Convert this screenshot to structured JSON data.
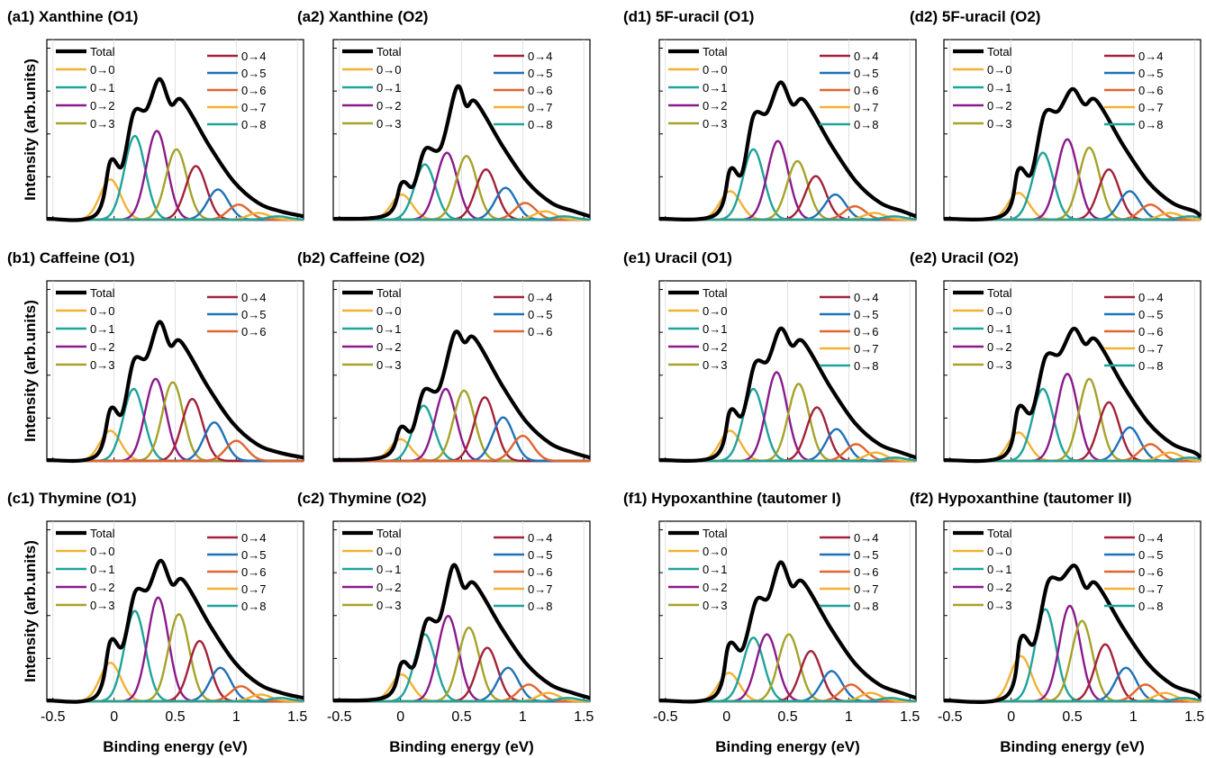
{
  "colors": {
    "Total": "#000000",
    "0→0": "#f2b134",
    "0→1": "#1fa39a",
    "0→2": "#8b1a8b",
    "0→3": "#a4a32a",
    "0→4": "#a3223a",
    "0→5": "#1f72b8",
    "0→6": "#e0652e",
    "0→7": "#f2b134",
    "0→8": "#1fa39a"
  },
  "axes": {
    "ylabel": "Intensity (arb.units)",
    "xlabel": "Binding energy (eV)",
    "xticks": [
      -0.5,
      0,
      0.5,
      1,
      1.5
    ],
    "xtick_labels": [
      "-0.5",
      "0",
      "0.5",
      "1",
      "1.5"
    ],
    "xlim": [
      -0.55,
      1.55
    ]
  },
  "chart_data": [
    {
      "type": "line",
      "title": "(a1) Xanthine (O1)",
      "xlabel": "",
      "ylabel": "Intensity (arb.units)",
      "legend_left": [
        "Total",
        "0→0",
        "0→1",
        "0→2",
        "0→3"
      ],
      "legend_right": [
        "0→4",
        "0→5",
        "0→6",
        "0→7",
        "0→8"
      ],
      "total_peaks": [
        {
          "x": -0.03,
          "y": 0.35
        },
        {
          "x": 0.16,
          "y": 0.64
        },
        {
          "x": 0.37,
          "y": 0.84
        },
        {
          "x": 0.56,
          "y": 0.71
        }
      ],
      "components": [
        {
          "name": "0→0",
          "center": -0.03,
          "height": 0.24
        },
        {
          "name": "0→1",
          "center": 0.17,
          "height": 0.5
        },
        {
          "name": "0→2",
          "center": 0.35,
          "height": 0.53
        },
        {
          "name": "0→3",
          "center": 0.51,
          "height": 0.42
        },
        {
          "name": "0→4",
          "center": 0.67,
          "height": 0.32
        },
        {
          "name": "0→5",
          "center": 0.85,
          "height": 0.18
        },
        {
          "name": "0→6",
          "center": 1.02,
          "height": 0.09
        },
        {
          "name": "0→7",
          "center": 1.18,
          "height": 0.04
        },
        {
          "name": "0→8",
          "center": 1.34,
          "height": 0.02
        }
      ]
    },
    {
      "type": "line",
      "title": "(a2) Xanthine (O2)",
      "xlabel": "",
      "ylabel": "",
      "legend_left": [
        "Total",
        "0→0",
        "0→1",
        "0→2",
        "0→3"
      ],
      "legend_right": [
        "0→4",
        "0→5",
        "0→6",
        "0→7",
        "0→8"
      ],
      "total_peaks": [
        {
          "x": 0.01,
          "y": 0.22
        },
        {
          "x": 0.2,
          "y": 0.42
        },
        {
          "x": 0.46,
          "y": 0.79
        },
        {
          "x": 0.62,
          "y": 0.7
        }
      ],
      "components": [
        {
          "name": "0→0",
          "center": 0.01,
          "height": 0.15
        },
        {
          "name": "0→1",
          "center": 0.2,
          "height": 0.33
        },
        {
          "name": "0→2",
          "center": 0.38,
          "height": 0.4
        },
        {
          "name": "0→3",
          "center": 0.54,
          "height": 0.38
        },
        {
          "name": "0→4",
          "center": 0.7,
          "height": 0.3
        },
        {
          "name": "0→5",
          "center": 0.86,
          "height": 0.19
        },
        {
          "name": "0→6",
          "center": 1.02,
          "height": 0.1
        },
        {
          "name": "0→7",
          "center": 1.18,
          "height": 0.05
        },
        {
          "name": "0→8",
          "center": 1.34,
          "height": 0.02
        }
      ]
    },
    {
      "type": "line",
      "title": "(d1) 5F-uracil (O1)",
      "xlabel": "",
      "ylabel": "",
      "legend_left": [
        "Total",
        "0→0",
        "0→1",
        "0→2",
        "0→3"
      ],
      "legend_right": [
        "0→4",
        "0→5",
        "0→6",
        "0→7",
        "0→8"
      ],
      "total_peaks": [
        {
          "x": 0.03,
          "y": 0.3
        },
        {
          "x": 0.22,
          "y": 0.62
        },
        {
          "x": 0.44,
          "y": 0.82
        },
        {
          "x": 0.64,
          "y": 0.71
        }
      ],
      "components": [
        {
          "name": "0→0",
          "center": 0.03,
          "height": 0.17
        },
        {
          "name": "0→1",
          "center": 0.22,
          "height": 0.42
        },
        {
          "name": "0→2",
          "center": 0.42,
          "height": 0.47
        },
        {
          "name": "0→3",
          "center": 0.58,
          "height": 0.35
        },
        {
          "name": "0→4",
          "center": 0.73,
          "height": 0.26
        },
        {
          "name": "0→5",
          "center": 0.89,
          "height": 0.15
        },
        {
          "name": "0→6",
          "center": 1.05,
          "height": 0.08
        },
        {
          "name": "0→7",
          "center": 1.21,
          "height": 0.04
        },
        {
          "name": "0→8",
          "center": 1.37,
          "height": 0.02
        }
      ]
    },
    {
      "type": "line",
      "title": "(d2) 5F-uracil (O2)",
      "xlabel": "",
      "ylabel": "",
      "legend_left": [
        "Total",
        "0→0",
        "0→1",
        "0→2",
        "0→3"
      ],
      "legend_right": [
        "0→4",
        "0→5",
        "0→6",
        "0→7",
        "0→8"
      ],
      "total_peaks": [
        {
          "x": 0.06,
          "y": 0.3
        },
        {
          "x": 0.27,
          "y": 0.63
        },
        {
          "x": 0.5,
          "y": 0.78
        },
        {
          "x": 0.7,
          "y": 0.71
        }
      ],
      "components": [
        {
          "name": "0→0",
          "center": 0.06,
          "height": 0.16
        },
        {
          "name": "0→1",
          "center": 0.26,
          "height": 0.4
        },
        {
          "name": "0→2",
          "center": 0.46,
          "height": 0.48
        },
        {
          "name": "0→3",
          "center": 0.64,
          "height": 0.43
        },
        {
          "name": "0→4",
          "center": 0.8,
          "height": 0.3
        },
        {
          "name": "0→5",
          "center": 0.97,
          "height": 0.17
        },
        {
          "name": "0→6",
          "center": 1.14,
          "height": 0.09
        },
        {
          "name": "0→7",
          "center": 1.3,
          "height": 0.04
        },
        {
          "name": "0→8",
          "center": 1.46,
          "height": 0.02
        }
      ]
    },
    {
      "type": "line",
      "title": "(b1) Caffeine (O1)",
      "xlabel": "",
      "ylabel": "Intensity (arb.units)",
      "legend_left": [
        "Total",
        "0→0",
        "0→1",
        "0→2",
        "0→3"
      ],
      "legend_right": [
        "0→4",
        "0→5",
        "0→6"
      ],
      "total_peaks": [
        {
          "x": -0.03,
          "y": 0.31
        },
        {
          "x": 0.16,
          "y": 0.6
        },
        {
          "x": 0.37,
          "y": 0.83
        },
        {
          "x": 0.55,
          "y": 0.71
        }
      ],
      "components": [
        {
          "name": "0→0",
          "center": -0.03,
          "height": 0.18
        },
        {
          "name": "0→1",
          "center": 0.16,
          "height": 0.43
        },
        {
          "name": "0→2",
          "center": 0.34,
          "height": 0.49
        },
        {
          "name": "0→3",
          "center": 0.48,
          "height": 0.47
        },
        {
          "name": "0→4",
          "center": 0.64,
          "height": 0.37
        },
        {
          "name": "0→5",
          "center": 0.82,
          "height": 0.23
        },
        {
          "name": "0→6",
          "center": 1.0,
          "height": 0.12
        }
      ]
    },
    {
      "type": "line",
      "title": "(b2) Caffeine (O2)",
      "xlabel": "",
      "ylabel": "",
      "legend_left": [
        "Total",
        "0→0",
        "0→1",
        "0→2",
        "0→3"
      ],
      "legend_right": [
        "0→4",
        "0→5",
        "0→6"
      ],
      "total_peaks": [
        {
          "x": 0.0,
          "y": 0.2
        },
        {
          "x": 0.19,
          "y": 0.42
        },
        {
          "x": 0.44,
          "y": 0.76
        },
        {
          "x": 0.61,
          "y": 0.73
        }
      ],
      "components": [
        {
          "name": "0→0",
          "center": 0.0,
          "height": 0.13
        },
        {
          "name": "0→1",
          "center": 0.19,
          "height": 0.33
        },
        {
          "name": "0→2",
          "center": 0.37,
          "height": 0.43
        },
        {
          "name": "0→3",
          "center": 0.52,
          "height": 0.42
        },
        {
          "name": "0→4",
          "center": 0.69,
          "height": 0.38
        },
        {
          "name": "0→5",
          "center": 0.84,
          "height": 0.26
        },
        {
          "name": "0→6",
          "center": 1.0,
          "height": 0.15
        }
      ]
    },
    {
      "type": "line",
      "title": "(e1) Uracil (O1)",
      "xlabel": "",
      "ylabel": "",
      "legend_left": [
        "Total",
        "0→0",
        "0→1",
        "0→2",
        "0→3"
      ],
      "legend_right": [
        "0→4",
        "0→5",
        "0→6",
        "0→7",
        "0→8"
      ],
      "total_peaks": [
        {
          "x": 0.03,
          "y": 0.3
        },
        {
          "x": 0.23,
          "y": 0.58
        },
        {
          "x": 0.44,
          "y": 0.79
        },
        {
          "x": 0.63,
          "y": 0.71
        }
      ],
      "components": [
        {
          "name": "0→0",
          "center": 0.03,
          "height": 0.18
        },
        {
          "name": "0→1",
          "center": 0.22,
          "height": 0.43
        },
        {
          "name": "0→2",
          "center": 0.41,
          "height": 0.53
        },
        {
          "name": "0→3",
          "center": 0.59,
          "height": 0.46
        },
        {
          "name": "0→4",
          "center": 0.74,
          "height": 0.32
        },
        {
          "name": "0→5",
          "center": 0.9,
          "height": 0.19
        },
        {
          "name": "0→6",
          "center": 1.06,
          "height": 0.1
        },
        {
          "name": "0→7",
          "center": 1.22,
          "height": 0.05
        },
        {
          "name": "0→8",
          "center": 1.38,
          "height": 0.02
        }
      ]
    },
    {
      "type": "line",
      "title": "(e2) Uracil (O2)",
      "xlabel": "",
      "ylabel": "",
      "legend_left": [
        "Total",
        "0→0",
        "0→1",
        "0→2",
        "0→3"
      ],
      "legend_right": [
        "0→4",
        "0→5",
        "0→6",
        "0→7",
        "0→8"
      ],
      "total_peaks": [
        {
          "x": 0.06,
          "y": 0.32
        },
        {
          "x": 0.28,
          "y": 0.62
        },
        {
          "x": 0.51,
          "y": 0.79
        },
        {
          "x": 0.7,
          "y": 0.72
        }
      ],
      "components": [
        {
          "name": "0→0",
          "center": 0.06,
          "height": 0.17
        },
        {
          "name": "0→1",
          "center": 0.26,
          "height": 0.43
        },
        {
          "name": "0→2",
          "center": 0.46,
          "height": 0.52
        },
        {
          "name": "0→3",
          "center": 0.64,
          "height": 0.49
        },
        {
          "name": "0→4",
          "center": 0.8,
          "height": 0.35
        },
        {
          "name": "0→5",
          "center": 0.97,
          "height": 0.2
        },
        {
          "name": "0→6",
          "center": 1.14,
          "height": 0.1
        },
        {
          "name": "0→7",
          "center": 1.3,
          "height": 0.05
        },
        {
          "name": "0→8",
          "center": 1.46,
          "height": 0.02
        }
      ]
    },
    {
      "type": "line",
      "title": "(c1) Thymine (O1)",
      "xlabel": "Binding energy (eV)",
      "ylabel": "Intensity (arb.units)",
      "legend_left": [
        "Total",
        "0→0",
        "0→1",
        "0→2",
        "0→3"
      ],
      "legend_right": [
        "0→4",
        "0→5",
        "0→6",
        "0→7",
        "0→8"
      ],
      "total_peaks": [
        {
          "x": -0.03,
          "y": 0.36
        },
        {
          "x": 0.17,
          "y": 0.65
        },
        {
          "x": 0.38,
          "y": 0.84
        },
        {
          "x": 0.57,
          "y": 0.72
        }
      ],
      "components": [
        {
          "name": "0→0",
          "center": -0.03,
          "height": 0.23
        },
        {
          "name": "0→1",
          "center": 0.17,
          "height": 0.54
        },
        {
          "name": "0→2",
          "center": 0.36,
          "height": 0.62
        },
        {
          "name": "0→3",
          "center": 0.53,
          "height": 0.52
        },
        {
          "name": "0→4",
          "center": 0.7,
          "height": 0.36
        },
        {
          "name": "0→5",
          "center": 0.87,
          "height": 0.2
        },
        {
          "name": "0→6",
          "center": 1.04,
          "height": 0.09
        },
        {
          "name": "0→7",
          "center": 1.2,
          "height": 0.04
        },
        {
          "name": "0→8",
          "center": 1.36,
          "height": 0.02
        }
      ]
    },
    {
      "type": "line",
      "title": "(c2) Thymine (O2)",
      "xlabel": "Binding energy (eV)",
      "ylabel": "",
      "legend_left": [
        "Total",
        "0→0",
        "0→1",
        "0→2",
        "0→3"
      ],
      "legend_right": [
        "0→4",
        "0→5",
        "0→6",
        "0→7",
        "0→8"
      ],
      "total_peaks": [
        {
          "x": 0.01,
          "y": 0.23
        },
        {
          "x": 0.21,
          "y": 0.48
        },
        {
          "x": 0.43,
          "y": 0.81
        },
        {
          "x": 0.61,
          "y": 0.7
        }
      ],
      "components": [
        {
          "name": "0→0",
          "center": 0.01,
          "height": 0.16
        },
        {
          "name": "0→1",
          "center": 0.2,
          "height": 0.4
        },
        {
          "name": "0→2",
          "center": 0.39,
          "height": 0.51
        },
        {
          "name": "0→3",
          "center": 0.56,
          "height": 0.44
        },
        {
          "name": "0→4",
          "center": 0.71,
          "height": 0.32
        },
        {
          "name": "0→5",
          "center": 0.88,
          "height": 0.2
        },
        {
          "name": "0→6",
          "center": 1.05,
          "height": 0.1
        },
        {
          "name": "0→7",
          "center": 1.21,
          "height": 0.05
        },
        {
          "name": "0→8",
          "center": 1.37,
          "height": 0.02
        }
      ]
    },
    {
      "type": "line",
      "title": "(f1) Hypoxanthine (tautomer I)",
      "xlabel": "Binding energy (eV)",
      "ylabel": "",
      "legend_left": [
        "Total",
        "0→0",
        "0→1",
        "0→2",
        "0→3"
      ],
      "legend_right": [
        "0→4",
        "0→5",
        "0→6",
        "0→7",
        "0→8"
      ],
      "total_peaks": [
        {
          "x": 0.02,
          "y": 0.34
        },
        {
          "x": 0.24,
          "y": 0.6
        },
        {
          "x": 0.44,
          "y": 0.83
        },
        {
          "x": 0.63,
          "y": 0.71
        }
      ],
      "components": [
        {
          "name": "0→0",
          "center": 0.02,
          "height": 0.17
        },
        {
          "name": "0→1",
          "center": 0.22,
          "height": 0.38
        },
        {
          "name": "0→2",
          "center": 0.33,
          "height": 0.4
        },
        {
          "name": "0→3",
          "center": 0.51,
          "height": 0.4
        },
        {
          "name": "0→4",
          "center": 0.69,
          "height": 0.3
        },
        {
          "name": "0→5",
          "center": 0.86,
          "height": 0.18
        },
        {
          "name": "0→6",
          "center": 1.02,
          "height": 0.1
        },
        {
          "name": "0→7",
          "center": 1.18,
          "height": 0.05
        },
        {
          "name": "0→8",
          "center": 1.34,
          "height": 0.02
        }
      ]
    },
    {
      "type": "line",
      "title": "(f2) Hypoxanthine (tautomer II)",
      "xlabel": "Binding energy (eV)",
      "ylabel": "",
      "legend_left": [
        "Total",
        "0→0",
        "0→1",
        "0→2",
        "0→3"
      ],
      "legend_right": [
        "0→4",
        "0→5",
        "0→6",
        "0→7",
        "0→8"
      ],
      "total_peaks": [
        {
          "x": 0.08,
          "y": 0.38
        },
        {
          "x": 0.3,
          "y": 0.71
        },
        {
          "x": 0.52,
          "y": 0.81
        },
        {
          "x": 0.7,
          "y": 0.7
        }
      ],
      "components": [
        {
          "name": "0→0",
          "center": 0.08,
          "height": 0.27
        },
        {
          "name": "0→1",
          "center": 0.28,
          "height": 0.55
        },
        {
          "name": "0→2",
          "center": 0.48,
          "height": 0.57
        },
        {
          "name": "0→3",
          "center": 0.58,
          "height": 0.48
        },
        {
          "name": "0→4",
          "center": 0.77,
          "height": 0.34
        },
        {
          "name": "0→5",
          "center": 0.94,
          "height": 0.2
        },
        {
          "name": "0→6",
          "center": 1.1,
          "height": 0.1
        },
        {
          "name": "0→7",
          "center": 1.26,
          "height": 0.05
        },
        {
          "name": "0→8",
          "center": 1.42,
          "height": 0.02
        }
      ]
    }
  ]
}
